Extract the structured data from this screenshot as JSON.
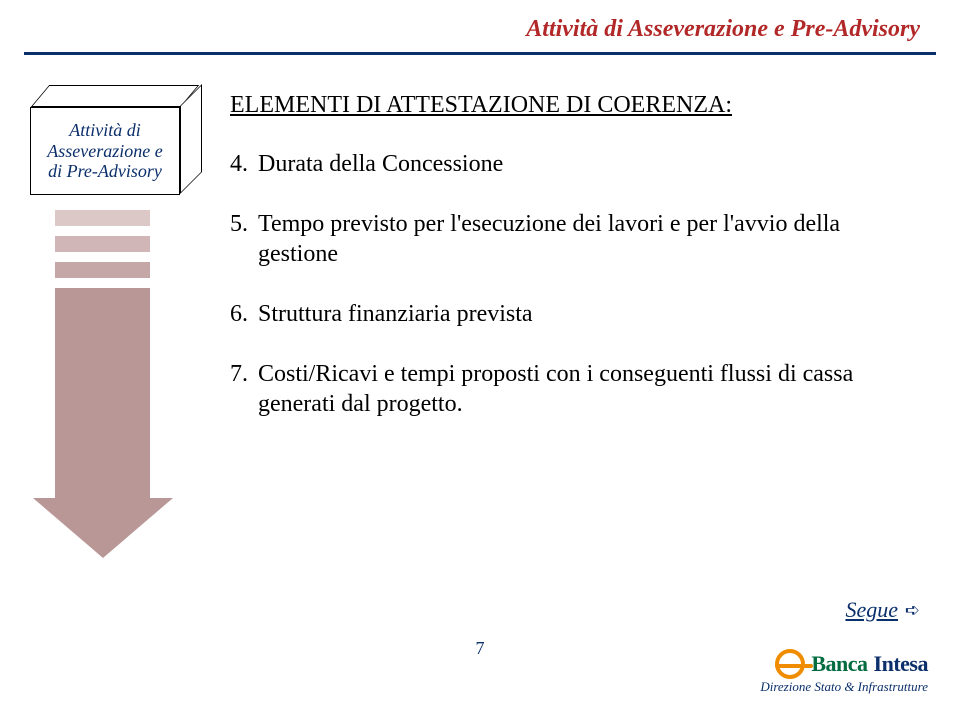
{
  "colors": {
    "title": "#b22828",
    "rule": "#0b2f6b",
    "box_text": "#0b2f6b",
    "arrow_bars": [
      "#ddc8c8",
      "#d0b6b6",
      "#c6a7a7"
    ],
    "arrow_body": "#b99797",
    "content": "#000000",
    "segue": "#0b2f6b",
    "pagenum": "#0b2f6b",
    "logo_ring": "#f08c00",
    "logo_banca": "#006b3f",
    "logo_intesa": "#0b2f6b",
    "footer_sub": "#0b2f6b"
  },
  "header": {
    "title": "Attività di Asseverazione e Pre-Advisory"
  },
  "box": {
    "line1": "Attività di",
    "line2": "Asseverazione e",
    "line3": "di Pre-Advisory"
  },
  "content": {
    "heading": "ELEMENTI DI ATTESTAZIONE DI COERENZA:",
    "items": [
      {
        "n": "4.",
        "t": "Durata della Concessione"
      },
      {
        "n": "5.",
        "t": "Tempo previsto per l'esecuzione dei lavori e per l'avvio della gestione"
      },
      {
        "n": "6.",
        "t": "Struttura finanziaria prevista"
      },
      {
        "n": "7.",
        "t": "Costi/Ricavi e tempi proposti con i conseguenti flussi di cassa generati dal progetto."
      }
    ]
  },
  "segue": "Segue",
  "segue_arrow": "➪",
  "page": "7",
  "footer": {
    "logo1": "Banca",
    "logo2": "Intesa",
    "sub": "Direzione Stato & Infrastrutture"
  }
}
